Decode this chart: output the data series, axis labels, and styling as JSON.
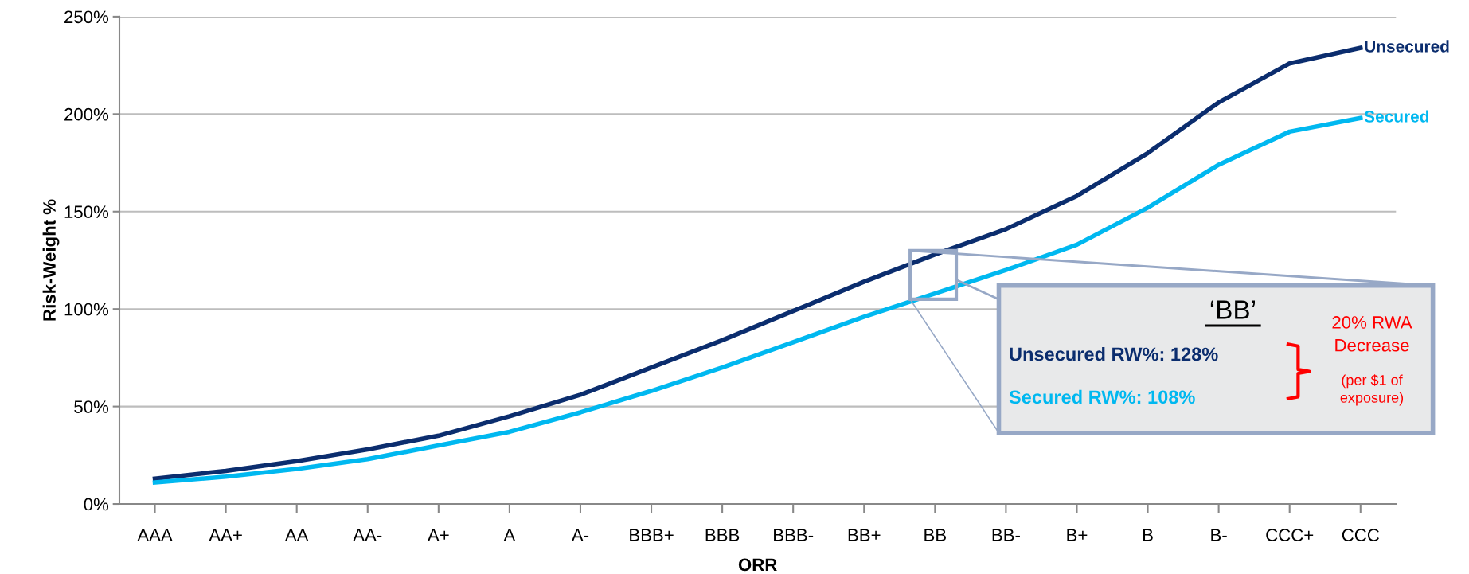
{
  "chart_data": {
    "type": "line",
    "categories": [
      "AAA",
      "AA+",
      "AA",
      "AA-",
      "A+",
      "A",
      "A-",
      "BBB+",
      "BBB",
      "BBB-",
      "BB+",
      "BB",
      "BB-",
      "B+",
      "B",
      "B-",
      "CCC+",
      "CCC"
    ],
    "series": [
      {
        "name": "Unsecured",
        "color": "#0b2d6e",
        "values": [
          13,
          17,
          22,
          28,
          35,
          45,
          56,
          70,
          84,
          99,
          114,
          128,
          141,
          158,
          180,
          206,
          226,
          234
        ]
      },
      {
        "name": "Secured",
        "color": "#00b8f0",
        "values": [
          11,
          14,
          18,
          23,
          30,
          37,
          47,
          58,
          70,
          83,
          96,
          108,
          120,
          133,
          152,
          174,
          191,
          198
        ]
      }
    ],
    "xlabel": "ORR",
    "ylabel": "Risk-Weight %",
    "ylim": [
      0,
      250
    ],
    "yticks": [
      {
        "value": 0,
        "label": "0%"
      },
      {
        "value": 50,
        "label": "50%"
      },
      {
        "value": 100,
        "label": "100%"
      },
      {
        "value": 150,
        "label": "150%"
      },
      {
        "value": 200,
        "label": "200%"
      },
      {
        "value": 250,
        "label": "250%"
      }
    ],
    "grid": "y",
    "annotations": [
      "‘BB’",
      "Unsecured RW%: 128%",
      "Secured RW%: 108%",
      "20% RWA\nDecrease",
      "(per $1 of\nexposure)"
    ]
  }
}
